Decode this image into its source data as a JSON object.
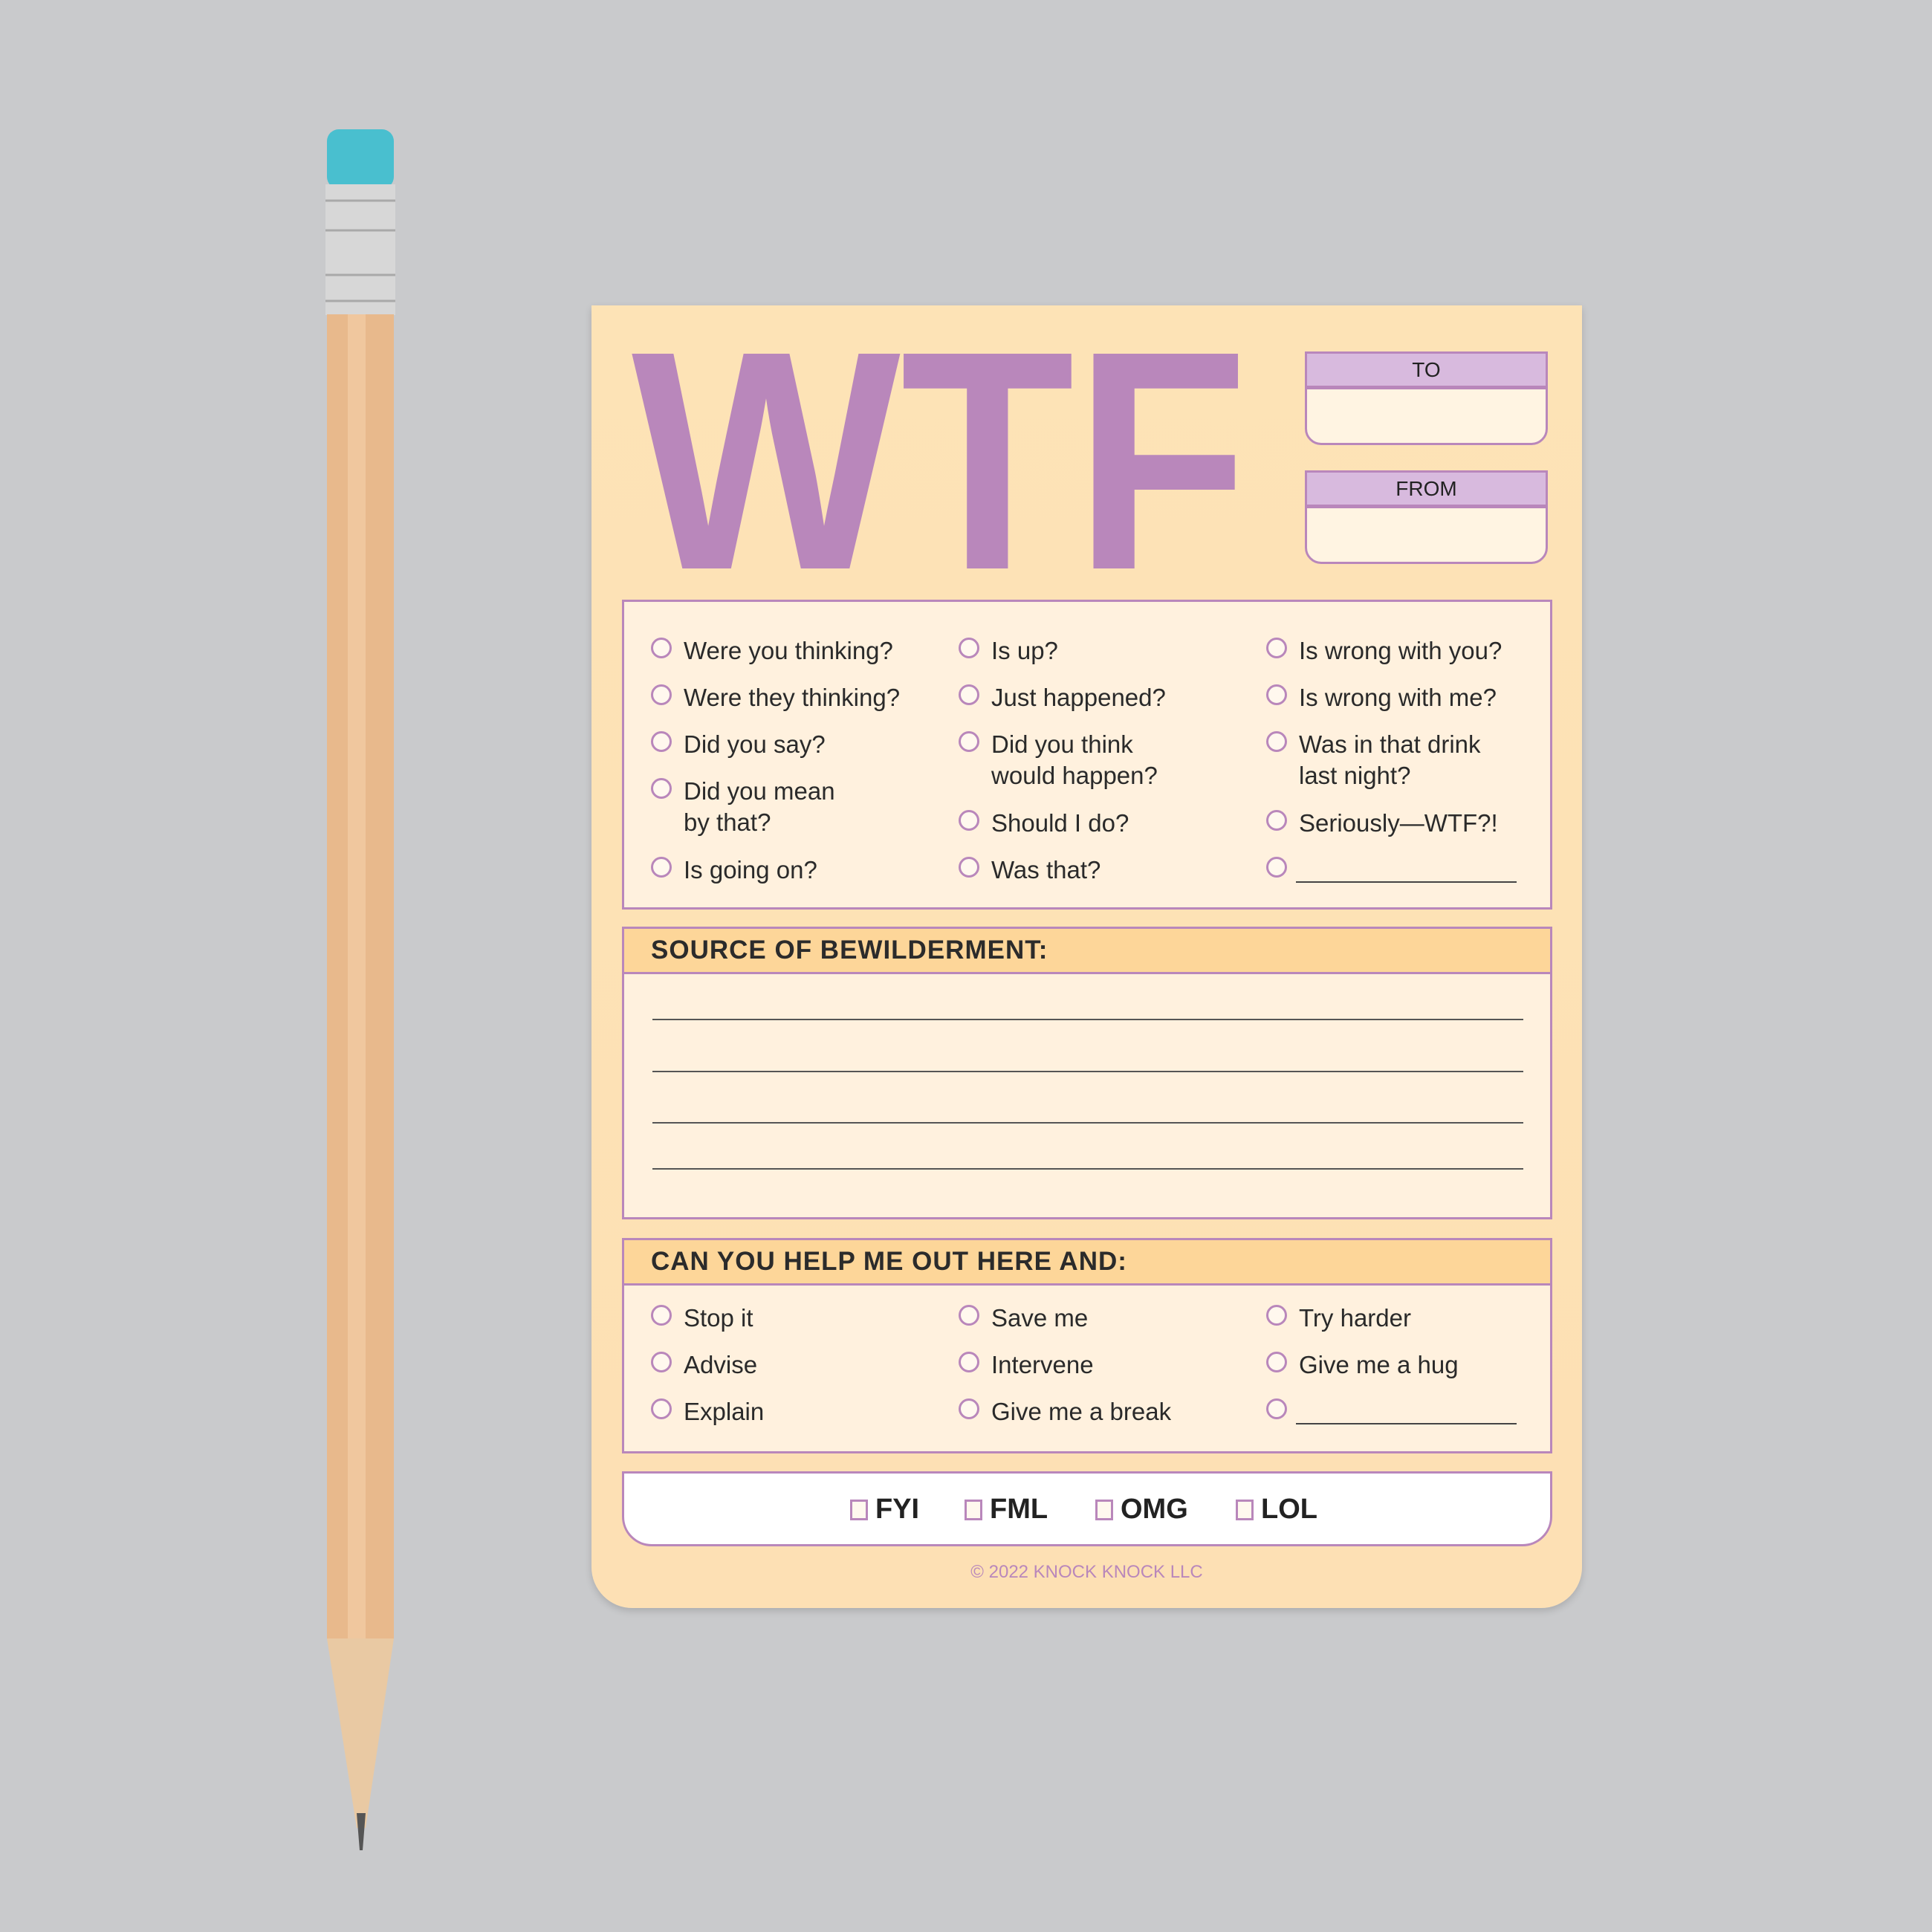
{
  "colors": {
    "background": "#c9cacc",
    "pad": "#fde3b6",
    "accent_purple": "#b987bb",
    "header_band": "#fdd699",
    "eraser": "#49bfcf",
    "pencil_wood": "#e8b98c"
  },
  "title": "WTF",
  "to_label": "TO",
  "from_label": "FROM",
  "questions": {
    "col1": [
      [
        "Were you thinking?"
      ],
      [
        "Were they thinking?"
      ],
      [
        "Did you say?"
      ],
      [
        "Did you mean",
        "by that?"
      ],
      [
        "Is going on?"
      ]
    ],
    "col2": [
      [
        "Is up?"
      ],
      [
        "Just happened?"
      ],
      [
        "Did you think",
        "would happen?"
      ],
      [
        "Should I do?"
      ],
      [
        "Was that?"
      ]
    ],
    "col3": [
      [
        "Is wrong with you?"
      ],
      [
        "Is wrong with me?"
      ],
      [
        "Was in that drink",
        "last night?"
      ],
      [
        "Seriously—WTF?!"
      ],
      [
        ""
      ]
    ]
  },
  "source_heading": "SOURCE OF BEWILDERMENT:",
  "help_heading": "CAN YOU HELP ME OUT HERE AND:",
  "help": {
    "col1": [
      "Stop it",
      "Advise",
      "Explain"
    ],
    "col2": [
      "Save me",
      "Intervene",
      "Give me a break"
    ],
    "col3": [
      "Try harder",
      "Give me a hug",
      ""
    ]
  },
  "tags": [
    "FYI",
    "FML",
    "OMG",
    "LOL"
  ],
  "copyright": "© 2022 KNOCK KNOCK LLC"
}
